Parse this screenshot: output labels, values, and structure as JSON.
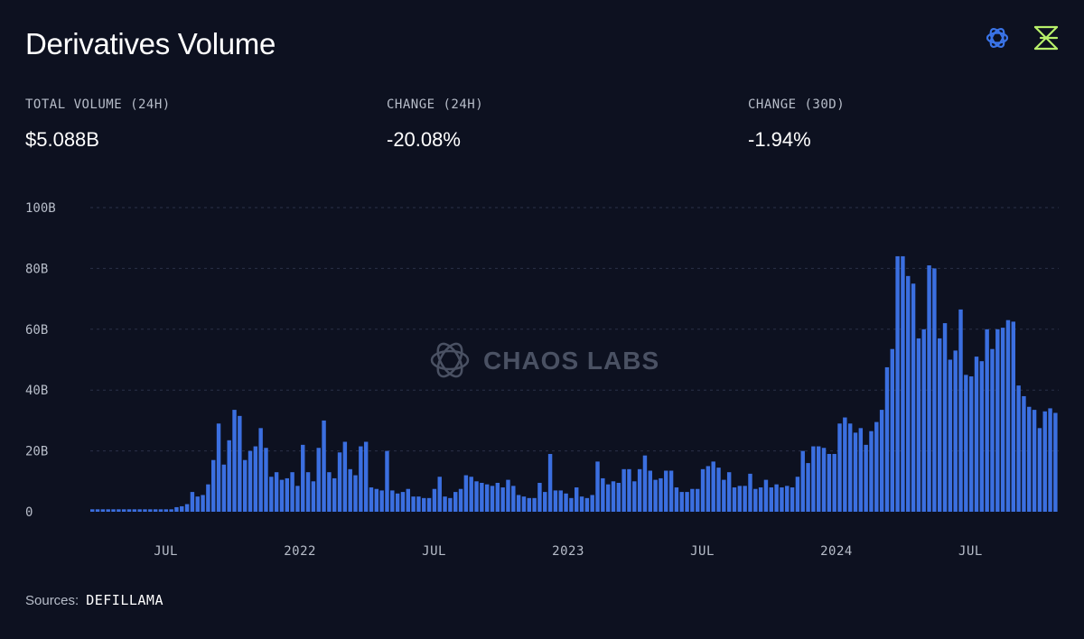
{
  "header": {
    "title": "Derivatives Volume",
    "icons": [
      "chaos-labs-atom-icon",
      "defillama-brand-icon"
    ]
  },
  "colors": {
    "background": "#0d1120",
    "bar": "#3b6fe0",
    "grid": "#2a3147",
    "label": "#b7bdc9",
    "watermark": "#4a5163",
    "accent_green": "#b8f06a",
    "accent_blue": "#3a74e8"
  },
  "stats": [
    {
      "label": "TOTAL VOLUME (24H)",
      "value": "$5.088B"
    },
    {
      "label": "CHANGE (24H)",
      "value": "-20.08%"
    },
    {
      "label": "CHANGE (30D)",
      "value": "-1.94%"
    }
  ],
  "watermark": "CHAOS LABS",
  "sources": {
    "label": "Sources:",
    "value": "DEFILLAMA"
  },
  "chart_data": {
    "type": "bar",
    "title": "",
    "xlabel": "",
    "ylabel": "",
    "ylim": [
      0,
      100
    ],
    "y_unit": "B",
    "grid": true,
    "y_ticks": [
      "0",
      "20B",
      "40B",
      "60B",
      "80B",
      "100B"
    ],
    "x_ticks": [
      "JUL",
      "2022",
      "JUL",
      "2023",
      "JUL",
      "2024",
      "JUL"
    ],
    "series": [
      {
        "values": [
          0.8,
          0.8,
          0.8,
          0.8,
          0.8,
          0.8,
          0.8,
          0.8,
          0.8,
          0.8,
          0.8,
          0.8,
          0.8,
          0.8,
          0.8,
          0.8,
          1.5,
          1.8,
          2.5,
          6.5,
          5,
          5.5,
          9,
          17,
          29,
          15.5,
          23.5,
          33.5,
          31.5,
          17,
          20,
          21.5,
          27.5,
          21,
          11.5,
          13,
          10.5,
          11,
          13,
          8.5,
          22,
          13,
          10,
          21,
          30,
          13,
          11,
          19.5,
          23,
          14,
          12,
          21.5,
          23,
          8,
          7.5,
          7,
          20,
          7,
          6,
          6.5,
          7.5,
          5,
          5,
          4.5,
          4.5,
          7.5,
          11.5,
          5,
          4.5,
          6.5,
          7.5,
          12,
          11.5,
          10,
          9.5,
          9,
          8.5,
          9.5,
          8,
          10.5,
          8.5,
          5.5,
          5,
          4.5,
          4.5,
          9.5,
          6.5,
          19,
          7,
          7,
          6,
          4.5,
          8,
          5,
          4.5,
          5.5,
          16.5,
          11,
          9,
          10,
          9.5,
          14,
          14,
          10,
          14,
          18.5,
          13.5,
          10.5,
          11,
          13.5,
          13.5,
          8,
          6.5,
          6.5,
          7.5,
          7.5,
          14,
          15,
          16.5,
          14.5,
          10.5,
          13,
          8,
          8.5,
          8.5,
          12.5,
          7.5,
          8,
          10.5,
          8,
          9,
          8,
          8.5,
          8,
          11.5,
          20,
          16,
          21.5,
          21.5,
          21,
          19,
          19,
          29,
          31,
          29,
          26,
          27.5,
          22,
          26.5,
          29.5,
          33.5,
          47.5,
          53.5,
          84,
          84,
          77.5,
          75,
          57,
          60,
          81,
          80,
          57,
          62,
          50,
          53,
          66.5,
          45,
          44.5,
          51,
          49.5,
          60,
          53.5,
          60,
          60.5,
          63,
          62.5,
          41.5,
          38,
          34.5,
          33.5,
          27.5,
          33,
          34,
          32.5
        ]
      }
    ]
  }
}
